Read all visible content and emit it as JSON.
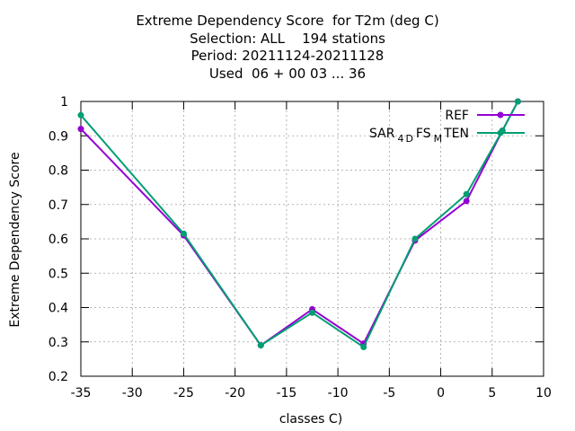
{
  "chart_data": {
    "type": "line",
    "title_lines": [
      "Extreme Dependency Score  for T2m (deg C)",
      "Selection: ALL    194 stations",
      "Period: 20211124-20211128",
      "Used  06 + 00 03 ... 36"
    ],
    "xlabel": "classes C)",
    "ylabel": "Extreme Dependency Score",
    "xlim": [
      -35,
      10
    ],
    "ylim": [
      0.2,
      1.0
    ],
    "xticks": [
      -35,
      -30,
      -25,
      -20,
      -15,
      -10,
      -5,
      0,
      5,
      10
    ],
    "yticks": [
      0.2,
      0.3,
      0.4,
      0.5,
      0.6,
      0.7,
      0.8,
      0.9,
      1.0
    ],
    "xtick_labels": [
      "-35",
      "-30",
      "-25",
      "-20",
      "-15",
      "-10",
      "-5",
      "0",
      "5",
      "10"
    ],
    "ytick_labels": [
      "0.2",
      "0.3",
      "0.4",
      "0.5",
      "0.6",
      "0.7",
      "0.8",
      "0.9",
      "1"
    ],
    "grid": true,
    "legend_position": "top-right",
    "x": [
      -35,
      -25,
      -17.5,
      -12.5,
      -7.5,
      -2.5,
      2.5,
      6,
      7.5
    ],
    "series": [
      {
        "name": "REF",
        "color": "#9400d3",
        "marker": "circle",
        "values": [
          0.92,
          0.61,
          0.29,
          0.395,
          0.295,
          0.595,
          0.71,
          0.915,
          1.0
        ]
      },
      {
        "name_parts": [
          "SAR",
          "4",
          "D",
          "FS",
          "M",
          "TEN"
        ],
        "color": "#009e73",
        "marker": "circle",
        "values": [
          0.96,
          0.615,
          0.29,
          0.385,
          0.285,
          0.6,
          0.73,
          0.915,
          1.0
        ]
      }
    ]
  }
}
